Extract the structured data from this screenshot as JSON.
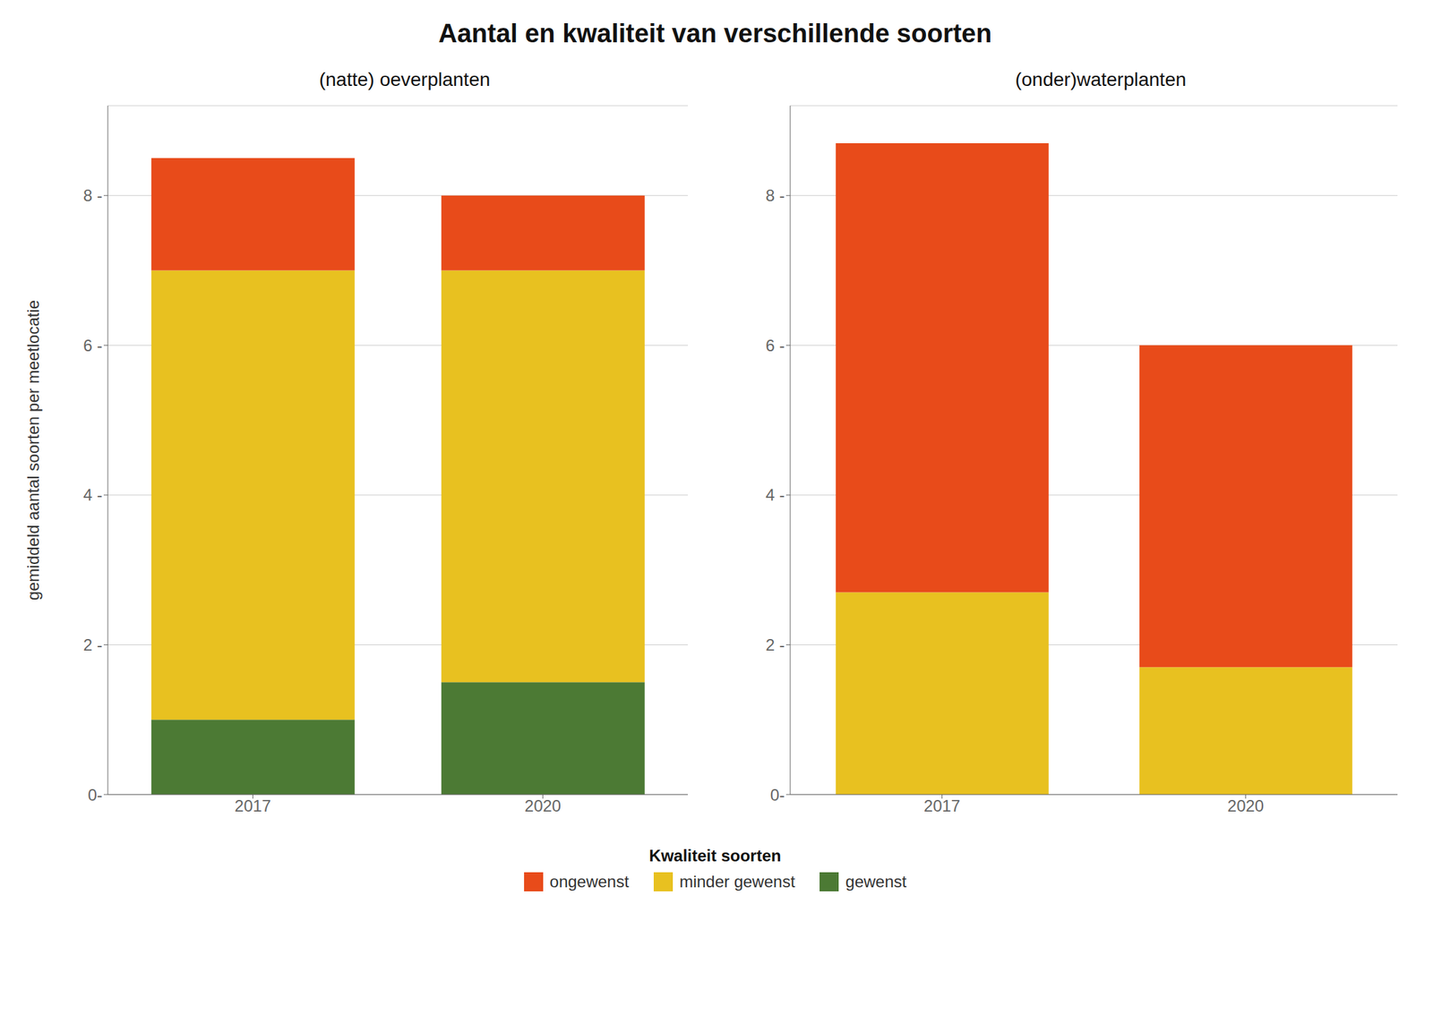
{
  "title": "Aantal en kwaliteit van verschillende soorten",
  "legend_title": "Kwaliteit soorten",
  "legend": "bottom",
  "chart_data": [
    {
      "type": "bar",
      "stacked": true,
      "subtitle": "(natte) oeverplanten",
      "ylabel": "gemiddeld aantal soorten per meetlocatie",
      "categories": [
        "2017",
        "2020"
      ],
      "series": [
        {
          "name": "gewenst",
          "color": "#4C7A34",
          "values": [
            1.0,
            1.5
          ]
        },
        {
          "name": "minder gewenst",
          "color": "#E8C120",
          "values": [
            6.0,
            5.5
          ]
        },
        {
          "name": "ongewenst",
          "color": "#E84B1A",
          "values": [
            1.5,
            1.0
          ]
        }
      ],
      "ylim": [
        0,
        9.2
      ],
      "yticks": [
        {
          "value": 0,
          "label": "0-"
        },
        {
          "value": 2,
          "label": "2 -"
        },
        {
          "value": 4,
          "label": "4 -"
        },
        {
          "value": 6,
          "label": "6 -"
        },
        {
          "value": 8,
          "label": "8 -"
        }
      ],
      "grid": true
    },
    {
      "type": "bar",
      "stacked": true,
      "subtitle": "(onder)waterplanten",
      "categories": [
        "2017",
        "2020"
      ],
      "series": [
        {
          "name": "gewenst",
          "color": "#4C7A34",
          "values": [
            0.0,
            0.0
          ]
        },
        {
          "name": "minder gewenst",
          "color": "#E8C120",
          "values": [
            2.7,
            1.7
          ]
        },
        {
          "name": "ongewenst",
          "color": "#E84B1A",
          "values": [
            6.0,
            4.3
          ]
        }
      ],
      "ylim": [
        0,
        9.2
      ],
      "yticks": [
        {
          "value": 0,
          "label": "0-"
        },
        {
          "value": 2,
          "label": "2 -"
        },
        {
          "value": 4,
          "label": "4 -"
        },
        {
          "value": 6,
          "label": "6 -"
        },
        {
          "value": 8,
          "label": "8 -"
        }
      ],
      "grid": true
    }
  ]
}
